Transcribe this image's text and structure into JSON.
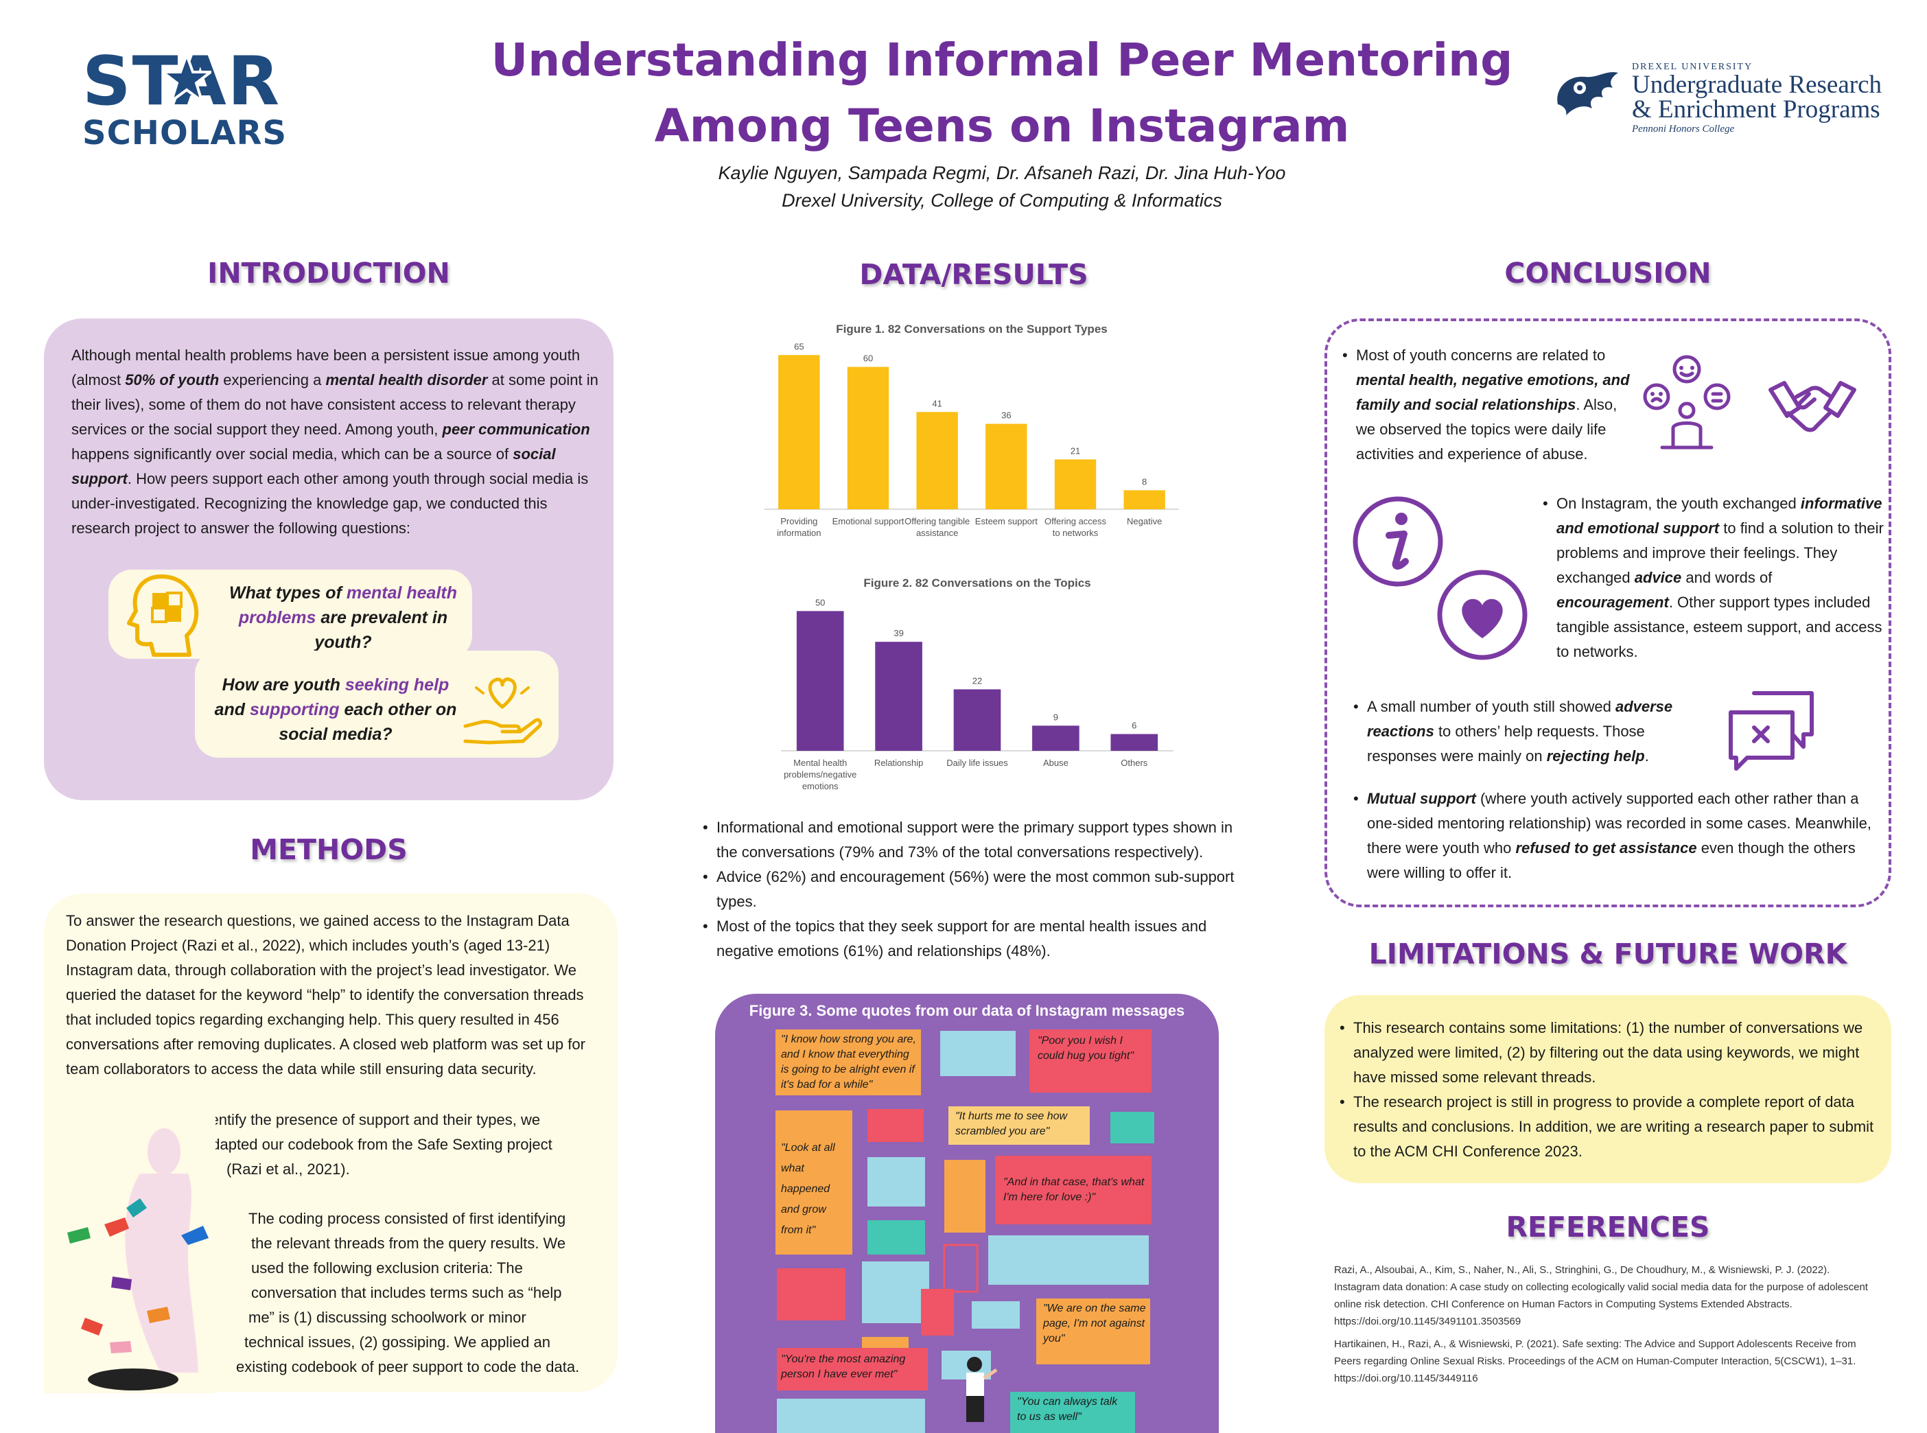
{
  "header": {
    "logo_line1": "STAR",
    "logo_line2": "SCHOLARS",
    "title_line1": "Understanding Informal Peer Mentoring",
    "title_line2": "Among Teens on Instagram",
    "authors": "Kaylie Nguyen, Sampada Regmi, Dr. Afsaneh Razi, Dr. Jina Huh-Yoo",
    "affiliation": "Drexel University, College of Computing & Informatics",
    "drexel_university": "DREXEL UNIVERSITY",
    "drexel_program_line1": "Undergraduate Research",
    "drexel_program_line2": "& Enrichment Programs",
    "drexel_college": "Pennoni Honors College"
  },
  "introduction": {
    "heading": "INTRODUCTION",
    "p1_a": "Although mental health problems have been a persistent issue among youth (almost ",
    "p1_b": "50% of youth",
    "p1_c": " experiencing a ",
    "p1_d": "mental health disorder",
    "p1_e": " at some point in their lives), some of them do not have consistent access to relevant therapy services or the social support they need. Among youth, ",
    "p1_f": "peer communication",
    "p1_g": " happens significantly over social media, which can be a source of ",
    "p1_h": "social support",
    "p1_i": ". How peers support each other among youth through social media is under-investigated. Recognizing the knowledge gap, we conducted this research project to answer the following questions:",
    "q1_a": "What types of ",
    "q1_b": "mental health problems",
    "q1_c": " are prevalent in youth?",
    "q2_a": "How are youth ",
    "q2_b": "seeking help",
    "q2_c": " and ",
    "q2_d": "supporting",
    "q2_e": " each other on social media?"
  },
  "methods": {
    "heading": "METHODS",
    "p1": "To answer the research questions, we gained access to the Instagram Data Donation Project (Razi et al., 2022), which includes youth’s (aged 13-21) Instagram data, through collaboration with the project’s lead investigator. We queried the dataset for the keyword “help” to identify the conversation threads that included topics regarding exchanging help. This query resulted in 456 conversations after removing duplicates. A closed web platform was set up for team collaborators to access the data while still ensuring data security.",
    "p2_l1": "To identify the presence of support and their types, we",
    "p2_l2": "adapted our codebook from the Safe Sexting project",
    "p2_l3": "(Razi et al., 2021).",
    "p3_l1": "The coding process consisted of first identifying",
    "p3_l2": "the relevant threads from the query results. We",
    "p3_l3": "used the following exclusion criteria: The",
    "p3_l4": "conversation that includes terms such as “help",
    "p3_l5": "me” is (1) discussing schoolwork or minor",
    "p3_l6": "technical issues, (2) gossiping. We applied an",
    "p3_l7": "existing codebook of peer support to code the data."
  },
  "results": {
    "heading": "DATA/RESULTS",
    "bullet1": "Informational and emotional support were the primary support types shown in the conversations (79% and 73% of the total conversations respectively).",
    "bullet2": "Advice (62%) and encouragement (56%) were the most common sub-support types.",
    "bullet3": "Most of the topics that they seek support for are mental health issues and negative emotions (61%) and relationships (48%)."
  },
  "chart_data": [
    {
      "type": "bar",
      "title": "Figure 1. 82 Conversations on the Support Types",
      "categories": [
        "Providing information",
        "Emotional support",
        "Offering tangible assistance",
        "Esteem support",
        "Offering access to networks",
        "Negative"
      ],
      "values": [
        65,
        60,
        41,
        36,
        21,
        8
      ],
      "color": "#fbbf16",
      "ylim": [
        0,
        70
      ],
      "grid": false
    },
    {
      "type": "bar",
      "title": "Figure 2. 82 Conversations on the Topics",
      "categories": [
        "Mental health problems/negative emotions",
        "Relationship",
        "Daily life issues",
        "Abuse",
        "Others"
      ],
      "values": [
        50,
        39,
        22,
        9,
        6
      ],
      "color": "#6e3796",
      "ylim": [
        0,
        55
      ],
      "grid": false
    }
  ],
  "figure3": {
    "title": "Figure 3. Some quotes from our data of Instagram messages",
    "q1": "\"I know how strong you are, and I know that everything is going to be alright even if it's bad for a while\"",
    "q2": "\"Poor you I wish I could hug you tight\"",
    "q3": "\"It hurts me to see how scrambled you are\"",
    "q4": "\"Look at all what happened and grow from it\"",
    "q5": "\"And in that case, that's what I'm here for love :)\"",
    "q6": "\"You're the most amazing person I have ever met\"",
    "q7": "\"We are on the same page, I'm not against you\"",
    "q8": "\"You can always talk to us as well\""
  },
  "conclusion": {
    "heading": "CONCLUSION",
    "b1_a": "Most of youth concerns are related to ",
    "b1_b": "mental health, negative emotions, and family and social relationships",
    "b1_c": ". Also, we observed the topics were daily life activities and experience of abuse.",
    "b2_a": "On Instagram, the youth exchanged ",
    "b2_b": "informative and emotional support",
    "b2_c": " to find a solution to their problems and improve their feelings. They exchanged ",
    "b2_d": "advice",
    "b2_e": " and words of ",
    "b2_f": "encouragement",
    "b2_g": ". Other support types included tangible assistance, esteem support, and access to networks.",
    "b3_a": "A small number of youth still showed ",
    "b3_b": "adverse reactions",
    "b3_c": " to others’ help requests. Those responses were mainly on ",
    "b3_d": "rejecting help",
    "b3_e": ".",
    "b4_a": "Mutual support",
    "b4_b": " (where youth actively supported each other rather than a one-sided mentoring relationship) was recorded in some cases. Meanwhile, there were youth who ",
    "b4_c": "refused to get assistance",
    "b4_d": " even though the others were willing to offer it."
  },
  "limitations": {
    "heading": "LIMITATIONS & FUTURE WORK",
    "b1": "This research contains some limitations: (1) the number of conversations we analyzed were limited, (2) by filtering out the data using keywords, we might have missed some relevant threads.",
    "b2": "The research project is still in progress to provide a complete report of data results and conclusions. In addition, we are writing a research paper to submit to the ACM CHI Conference 2023."
  },
  "references": {
    "heading": "REFERENCES",
    "r1": "Razi, A., Alsoubai, A., Kim, S., Naher, N., Ali, S., Stringhini, G., De Choudhury, M., & Wisniewski, P. J. (2022). Instagram data donation: A case study on collecting ecologically valid social media data for the purpose of adolescent online risk detection. CHI Conference on Human Factors in Computing Systems Extended Abstracts. https://doi.org/10.1145/3491101.3503569",
    "r2": "Hartikainen, H., Razi, A., & Wisniewski, P. (2021). Safe sexting: The Advice and Support Adolescents Receive from Peers regarding Online Sexual Risks. Proceedings of the ACM on Human-Computer Interaction, 5(CSCW1), 1–31. https://doi.org/10.1145/3449116"
  },
  "icons": [
    "star-icon",
    "drexel-dragon-icon",
    "head-puzzle-icon",
    "hand-heart-icon",
    "people-emotions-icon",
    "handshake-icon",
    "info-icon",
    "heart-icon",
    "chat-reject-icon",
    "hands-figure-illustration",
    "woman-figure-illustration"
  ]
}
